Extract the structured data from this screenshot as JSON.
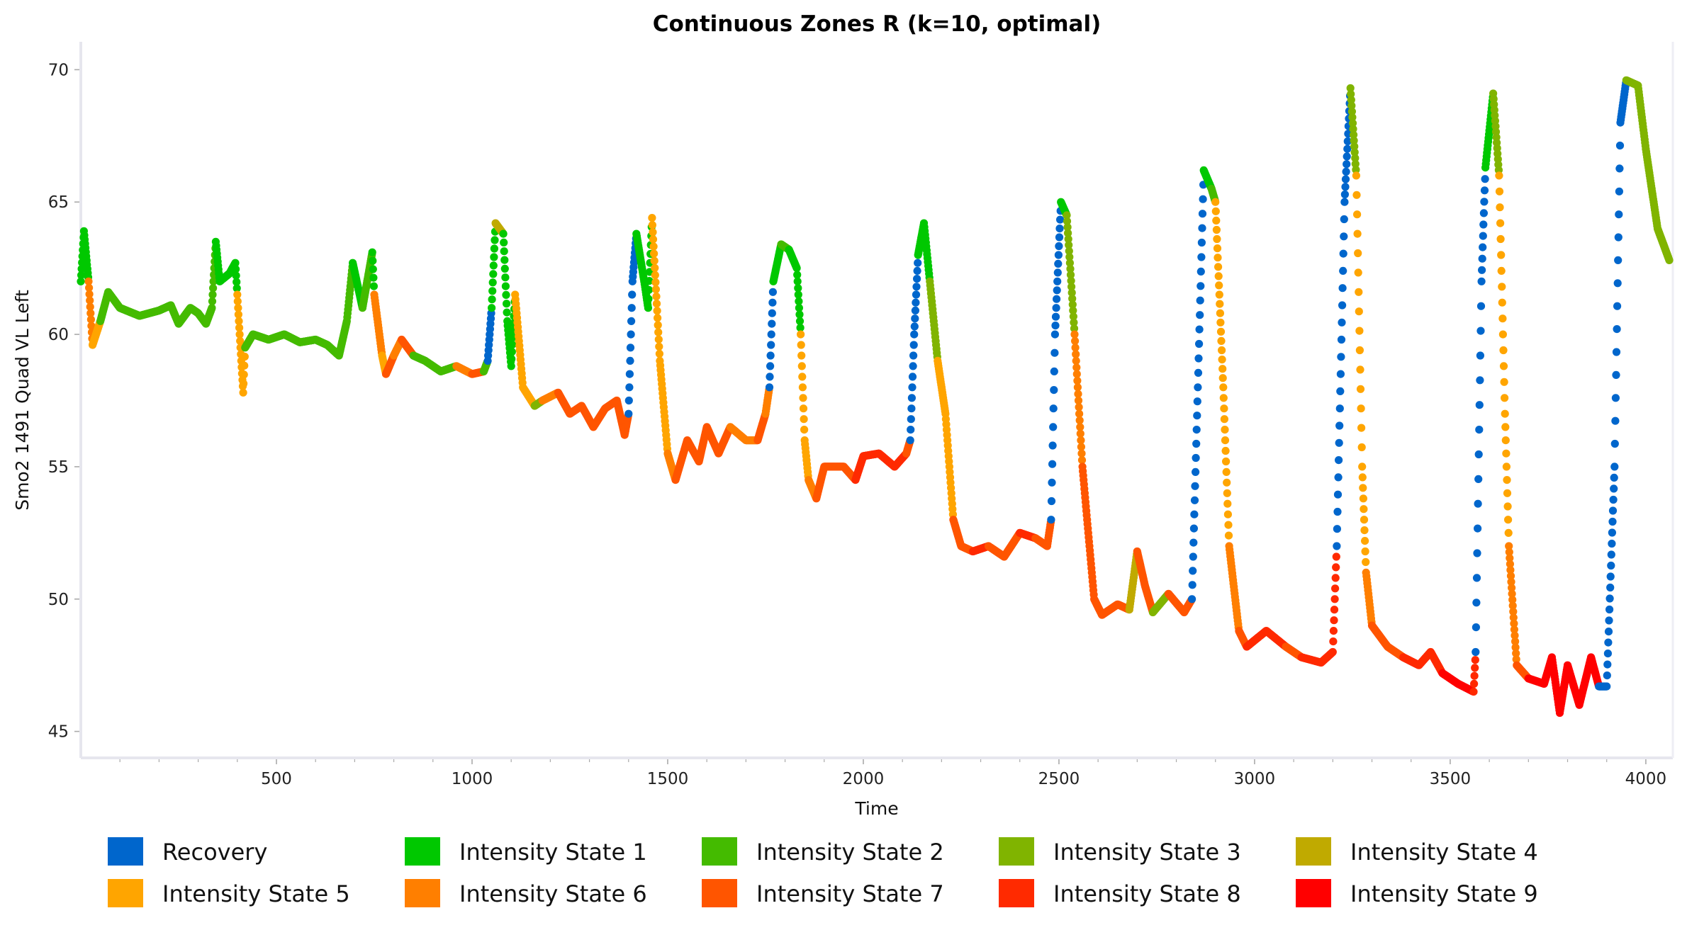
{
  "chart_data": {
    "type": "scatter",
    "title": "Continuous Zones R (k=10, optimal)",
    "xlabel": "Time",
    "ylabel": "Smo2 1491 Quad VL Left",
    "xlim": [
      0,
      4069
    ],
    "ylim": [
      44,
      71
    ],
    "xticks": [
      500,
      1000,
      1500,
      2000,
      2500,
      3000,
      3500,
      4000
    ],
    "yticks": [
      45,
      50,
      55,
      60,
      65,
      70
    ],
    "grid": false,
    "legend_position": "bottom",
    "states": [
      {
        "name": "Recovery",
        "color": "#0066CC"
      },
      {
        "name": "Intensity State 1",
        "color": "#00C800"
      },
      {
        "name": "Intensity State 2",
        "color": "#44BB00"
      },
      {
        "name": "Intensity State 3",
        "color": "#80B400"
      },
      {
        "name": "Intensity State 4",
        "color": "#C0AA00"
      },
      {
        "name": "Intensity State 5",
        "color": "#FFA500"
      },
      {
        "name": "Intensity State 6",
        "color": "#FF7F00"
      },
      {
        "name": "Intensity State 7",
        "color": "#FF5500"
      },
      {
        "name": "Intensity State 8",
        "color": "#FF2A00"
      },
      {
        "name": "Intensity State 9",
        "color": "#FF0000"
      }
    ],
    "points_format": [
      "time",
      "value",
      "state_index"
    ],
    "points": [
      [
        0,
        62,
        1
      ],
      [
        8,
        63.9,
        1
      ],
      [
        20,
        62,
        6
      ],
      [
        30,
        59.6,
        5
      ],
      [
        50,
        60.5,
        2
      ],
      [
        70,
        61.6,
        2
      ],
      [
        100,
        61,
        2
      ],
      [
        150,
        60.7,
        2
      ],
      [
        200,
        60.9,
        2
      ],
      [
        230,
        61.1,
        2
      ],
      [
        250,
        60.4,
        2
      ],
      [
        280,
        61,
        2
      ],
      [
        300,
        60.8,
        2
      ],
      [
        320,
        60.4,
        2
      ],
      [
        335,
        61,
        2
      ],
      [
        345,
        63.5,
        1
      ],
      [
        355,
        62,
        1
      ],
      [
        380,
        62.3,
        1
      ],
      [
        395,
        62.7,
        1
      ],
      [
        400,
        61.5,
        5
      ],
      [
        410,
        59,
        5
      ],
      [
        415,
        57.8,
        5
      ],
      [
        420,
        59.5,
        2
      ],
      [
        440,
        60,
        2
      ],
      [
        480,
        59.8,
        2
      ],
      [
        520,
        60,
        2
      ],
      [
        560,
        59.7,
        2
      ],
      [
        600,
        59.8,
        2
      ],
      [
        630,
        59.6,
        2
      ],
      [
        660,
        59.2,
        2
      ],
      [
        680,
        60.5,
        2
      ],
      [
        695,
        62.7,
        1
      ],
      [
        720,
        61,
        2
      ],
      [
        745,
        63.1,
        1
      ],
      [
        750,
        61.5,
        6
      ],
      [
        770,
        59.2,
        5
      ],
      [
        780,
        58.5,
        7
      ],
      [
        800,
        59.2,
        6
      ],
      [
        820,
        59.8,
        7
      ],
      [
        850,
        59.2,
        2
      ],
      [
        880,
        59,
        2
      ],
      [
        920,
        58.6,
        2
      ],
      [
        960,
        58.8,
        6
      ],
      [
        1000,
        58.5,
        7
      ],
      [
        1030,
        58.6,
        2
      ],
      [
        1040,
        59,
        0
      ],
      [
        1050,
        61,
        1
      ],
      [
        1060,
        64.2,
        4
      ],
      [
        1080,
        63.8,
        1
      ],
      [
        1090,
        60.5,
        1
      ],
      [
        1100,
        58.8,
        1
      ],
      [
        1110,
        61.5,
        5
      ],
      [
        1130,
        58,
        5
      ],
      [
        1160,
        57.3,
        3
      ],
      [
        1180,
        57.5,
        6
      ],
      [
        1220,
        57.8,
        7
      ],
      [
        1250,
        57,
        7
      ],
      [
        1280,
        57.3,
        7
      ],
      [
        1310,
        56.5,
        7
      ],
      [
        1340,
        57.2,
        7
      ],
      [
        1370,
        57.5,
        7
      ],
      [
        1390,
        56.2,
        7
      ],
      [
        1400,
        57,
        0
      ],
      [
        1410,
        62,
        0
      ],
      [
        1420,
        63.8,
        1
      ],
      [
        1440,
        62,
        1
      ],
      [
        1450,
        61,
        1
      ],
      [
        1460,
        64.4,
        5
      ],
      [
        1480,
        59,
        5
      ],
      [
        1500,
        55.5,
        6
      ],
      [
        1520,
        54.5,
        7
      ],
      [
        1550,
        56,
        7
      ],
      [
        1580,
        55.2,
        7
      ],
      [
        1600,
        56.5,
        7
      ],
      [
        1630,
        55.5,
        7
      ],
      [
        1660,
        56.5,
        6
      ],
      [
        1700,
        56,
        6
      ],
      [
        1730,
        56,
        7
      ],
      [
        1750,
        57,
        6
      ],
      [
        1760,
        58,
        0
      ],
      [
        1770,
        62,
        1
      ],
      [
        1790,
        63.4,
        2
      ],
      [
        1810,
        63.2,
        1
      ],
      [
        1830,
        62.5,
        1
      ],
      [
        1840,
        60,
        5
      ],
      [
        1850,
        56,
        5
      ],
      [
        1860,
        54.5,
        6
      ],
      [
        1880,
        53.8,
        7
      ],
      [
        1900,
        55,
        7
      ],
      [
        1950,
        55,
        7
      ],
      [
        1980,
        54.5,
        8
      ],
      [
        2000,
        55.4,
        8
      ],
      [
        2040,
        55.5,
        8
      ],
      [
        2080,
        55,
        8
      ],
      [
        2110,
        55.5,
        7
      ],
      [
        2120,
        56,
        0
      ],
      [
        2130,
        60,
        0
      ],
      [
        2140,
        63,
        1
      ],
      [
        2155,
        64.2,
        1
      ],
      [
        2170,
        62,
        3
      ],
      [
        2190,
        59,
        5
      ],
      [
        2210,
        57,
        5
      ],
      [
        2230,
        53,
        7
      ],
      [
        2250,
        52,
        7
      ],
      [
        2280,
        51.8,
        8
      ],
      [
        2320,
        52,
        7
      ],
      [
        2360,
        51.6,
        7
      ],
      [
        2400,
        52.5,
        8
      ],
      [
        2440,
        52.3,
        7
      ],
      [
        2470,
        52,
        7
      ],
      [
        2480,
        53,
        0
      ],
      [
        2490,
        60,
        0
      ],
      [
        2505,
        65,
        1
      ],
      [
        2520,
        64.5,
        3
      ],
      [
        2540,
        60,
        6
      ],
      [
        2560,
        55,
        7
      ],
      [
        2590,
        50,
        7
      ],
      [
        2610,
        49.4,
        7
      ],
      [
        2650,
        49.8,
        7
      ],
      [
        2680,
        49.6,
        4
      ],
      [
        2700,
        51.8,
        7
      ],
      [
        2720,
        50.5,
        7
      ],
      [
        2740,
        49.5,
        3
      ],
      [
        2780,
        50.2,
        7
      ],
      [
        2820,
        49.5,
        7
      ],
      [
        2840,
        50,
        0
      ],
      [
        2855,
        58,
        0
      ],
      [
        2870,
        66.2,
        1
      ],
      [
        2890,
        65.5,
        2
      ],
      [
        2900,
        65,
        5
      ],
      [
        2920,
        58,
        5
      ],
      [
        2935,
        52,
        6
      ],
      [
        2960,
        48.8,
        7
      ],
      [
        2980,
        48.2,
        8
      ],
      [
        3030,
        48.8,
        8
      ],
      [
        3080,
        48.2,
        7
      ],
      [
        3120,
        47.8,
        8
      ],
      [
        3170,
        47.6,
        8
      ],
      [
        3200,
        48,
        8
      ],
      [
        3210,
        52,
        0
      ],
      [
        3230,
        65,
        0
      ],
      [
        3245,
        69.3,
        3
      ],
      [
        3260,
        66,
        5
      ],
      [
        3275,
        55,
        5
      ],
      [
        3285,
        51,
        6
      ],
      [
        3300,
        49,
        7
      ],
      [
        3340,
        48.2,
        7
      ],
      [
        3380,
        47.8,
        8
      ],
      [
        3420,
        47.5,
        8
      ],
      [
        3450,
        48,
        8
      ],
      [
        3480,
        47.2,
        9
      ],
      [
        3520,
        46.8,
        9
      ],
      [
        3560,
        46.5,
        8
      ],
      [
        3565,
        48,
        0
      ],
      [
        3580,
        62,
        0
      ],
      [
        3590,
        66.3,
        1
      ],
      [
        3610,
        69.1,
        3
      ],
      [
        3625,
        66,
        5
      ],
      [
        3640,
        57,
        5
      ],
      [
        3650,
        52,
        6
      ],
      [
        3670,
        47.5,
        7
      ],
      [
        3700,
        47,
        9
      ],
      [
        3740,
        46.8,
        9
      ],
      [
        3760,
        47.8,
        9
      ],
      [
        3780,
        45.7,
        9
      ],
      [
        3800,
        47.5,
        9
      ],
      [
        3830,
        46,
        9
      ],
      [
        3860,
        47.8,
        9
      ],
      [
        3880,
        46.7,
        0
      ],
      [
        3900,
        46.7,
        0
      ],
      [
        3920,
        55,
        0
      ],
      [
        3935,
        68,
        0
      ],
      [
        3950,
        69.6,
        3
      ],
      [
        3980,
        69.4,
        3
      ],
      [
        4000,
        67,
        3
      ],
      [
        4030,
        64,
        3
      ],
      [
        4060,
        62.8,
        3
      ]
    ]
  }
}
